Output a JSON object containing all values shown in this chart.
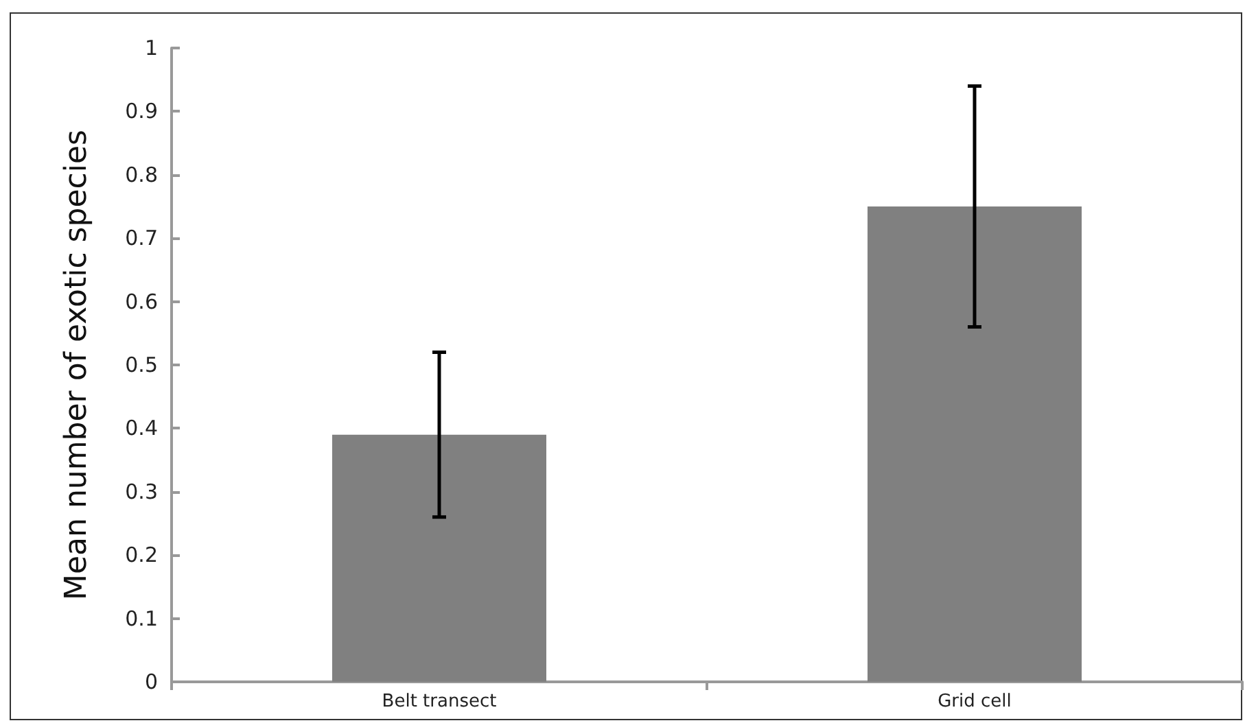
{
  "chart_data": {
    "type": "bar",
    "ylabel": "Mean number of exotic species",
    "categories": [
      "Belt transect",
      "Grid cell"
    ],
    "values": [
      0.39,
      0.75
    ],
    "errors": [
      [
        0.26,
        0.52
      ],
      [
        0.56,
        0.94
      ]
    ],
    "color": "#808080",
    "ylim": [
      0,
      1
    ],
    "yticks": [
      0,
      0.1,
      0.2,
      0.3,
      0.4,
      0.5,
      0.6,
      0.7,
      0.8,
      0.9,
      1
    ],
    "grid": false
  }
}
